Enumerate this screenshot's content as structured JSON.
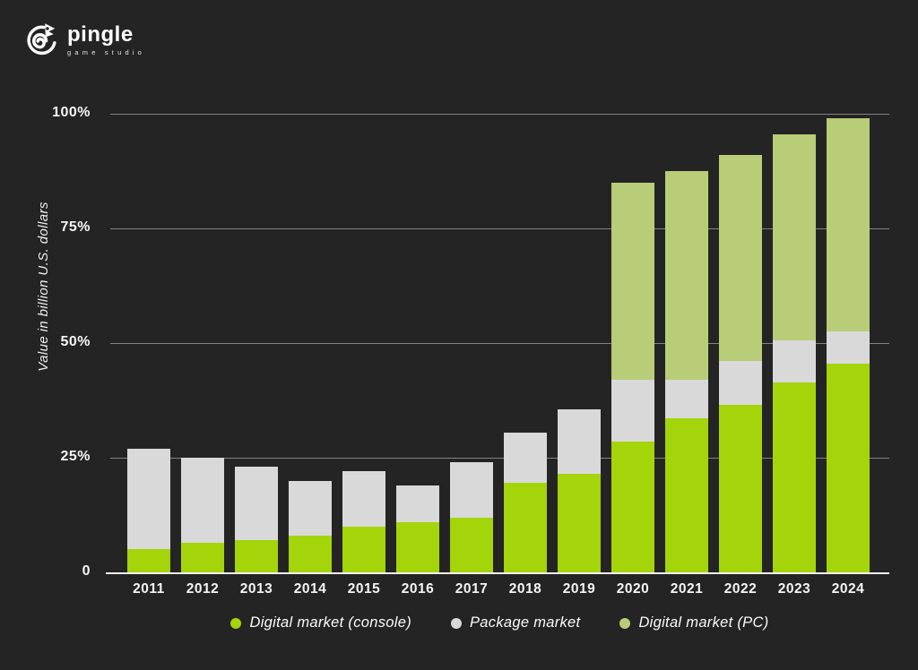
{
  "brand": {
    "name": "pingle",
    "tagline": "game studio",
    "logo_icon": "chameleon-icon"
  },
  "colors": {
    "background": "#242424",
    "console_green": "#a4d40a",
    "package_gray": "#d9d9d9",
    "pc_green": "#b9cc77",
    "gridline": "#848484",
    "axis_line": "#f5f5f5",
    "text": "#f5f5f5"
  },
  "chart_data": {
    "type": "bar",
    "stacked": true,
    "title": "",
    "xlabel": "",
    "ylabel": "Value in billion U.S. dollars",
    "ylim": [
      0,
      100
    ],
    "grid": true,
    "legend_position": "bottom",
    "yticks": [
      {
        "value": 0,
        "label": "0"
      },
      {
        "value": 25,
        "label": "25%"
      },
      {
        "value": 50,
        "label": "50%"
      },
      {
        "value": 75,
        "label": "75%"
      },
      {
        "value": 100,
        "label": "100%"
      }
    ],
    "categories": [
      "2011",
      "2012",
      "2013",
      "2014",
      "2015",
      "2016",
      "2017",
      "2018",
      "2019",
      "2020",
      "2021",
      "2022",
      "2023",
      "2024"
    ],
    "series": [
      {
        "name": "Digital market (console)",
        "color": "#a4d40a",
        "values": [
          5,
          6.5,
          7,
          8,
          10,
          11,
          12,
          19.5,
          21.5,
          28.5,
          33.5,
          36.5,
          41.5,
          45.5
        ]
      },
      {
        "name": "Package market",
        "color": "#d9d9d9",
        "values": [
          22,
          18.5,
          16,
          12,
          12,
          8,
          12,
          11,
          14,
          13.5,
          8.5,
          9.5,
          9,
          7
        ]
      },
      {
        "name": "Digital market (PC)",
        "color": "#b9cc77",
        "values": [
          0,
          0,
          0,
          0,
          0,
          0,
          0,
          0,
          0,
          43,
          45.5,
          45,
          45,
          46.5
        ]
      }
    ]
  }
}
